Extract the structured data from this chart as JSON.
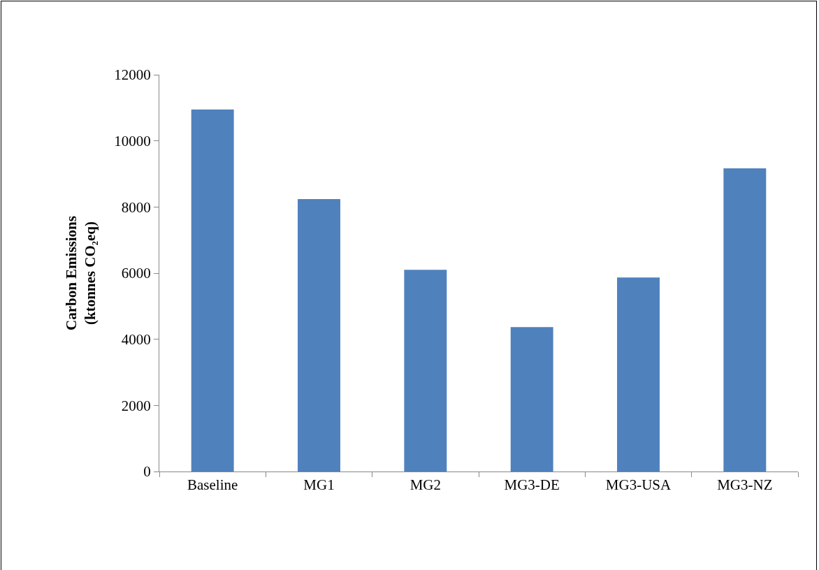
{
  "chart_data": {
    "type": "bar",
    "ylabel": "Carbon Emissions\n(ktonnes CO₂eq)",
    "categories": [
      "Baseline",
      "MG1",
      "MG2",
      "MG3-DE",
      "MG3-USA",
      "MG3-NZ"
    ],
    "values": [
      10950,
      8240,
      6100,
      4370,
      5870,
      9170
    ],
    "color": "#4f81bd",
    "ylim": [
      0,
      12000
    ],
    "yticks": [
      0,
      2000,
      4000,
      6000,
      8000,
      10000,
      12000
    ],
    "grid": false,
    "legend": false
  }
}
